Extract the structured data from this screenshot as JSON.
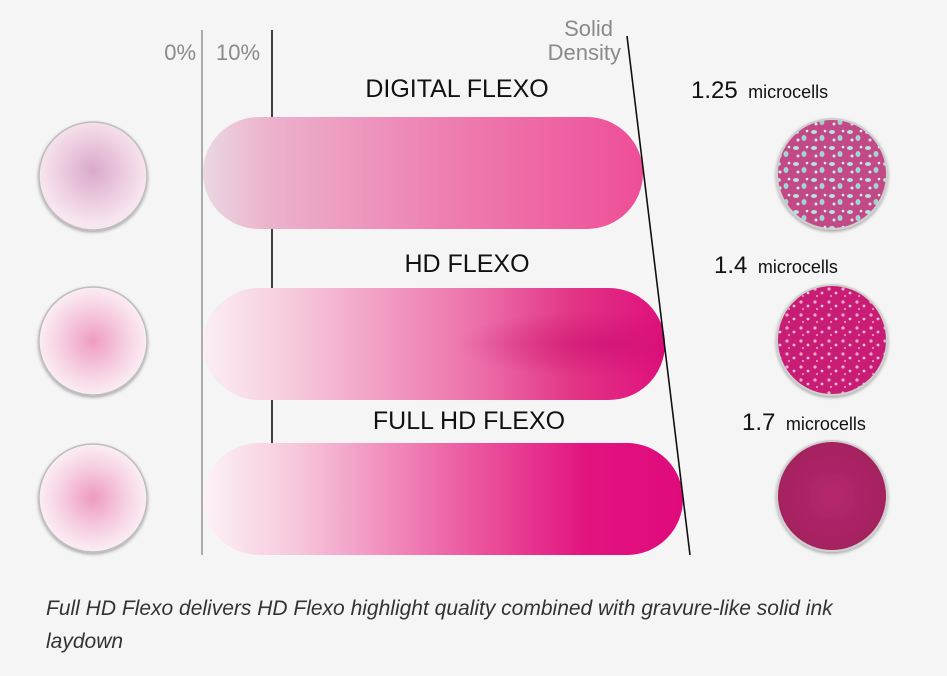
{
  "markers": {
    "zero": "0%",
    "ten": "10%",
    "solid_line1": "Solid",
    "solid_line2": "Density"
  },
  "rows": [
    {
      "title": "DIGITAL FLEXO",
      "density_value": "1.25",
      "density_unit": "microcells",
      "color": "#ec4e96"
    },
    {
      "title": "HD FLEXO",
      "density_value": "1.4",
      "density_unit": "microcells",
      "color": "#e2147e"
    },
    {
      "title": "FULL HD FLEXO",
      "density_value": "1.7",
      "density_unit": "microcells",
      "color": "#e00a7c"
    }
  ],
  "caption": "Full HD Flexo delivers HD Flexo highlight quality combined with gravure-like solid ink laydown",
  "colors": {
    "background": "#f5f5f5",
    "text": "#111111",
    "marker_text": "#8a8a8a",
    "line_gray": "#9a9a9a",
    "line_dark": "#111111"
  }
}
